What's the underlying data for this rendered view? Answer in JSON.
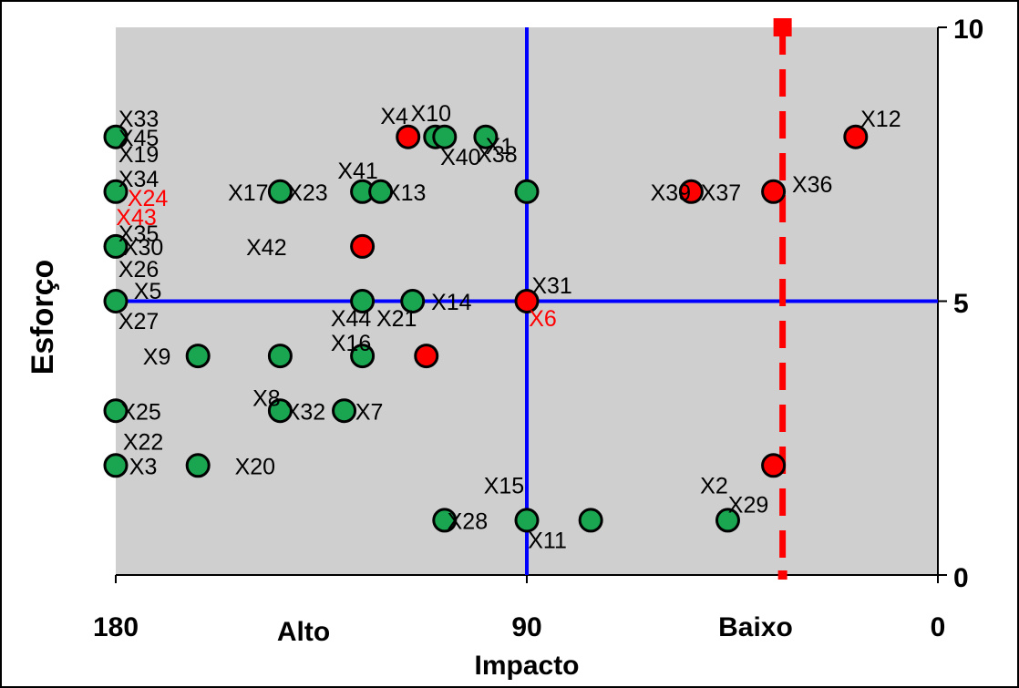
{
  "chart_data": {
    "type": "scatter",
    "title": "",
    "xlabel": "Impacto",
    "ylabel": "Esforço",
    "xlim": [
      180,
      0
    ],
    "ylim": [
      0,
      10
    ],
    "x_ticks": [
      {
        "value": 180,
        "label": "180"
      },
      {
        "value": 90,
        "label": "90"
      },
      {
        "value": 0,
        "label": "0"
      }
    ],
    "x_category_labels": [
      {
        "value": 135,
        "label": "Alto"
      },
      {
        "value": 30,
        "label": "Baixo"
      }
    ],
    "y_ticks": [
      {
        "value": 0,
        "label": "0"
      },
      {
        "value": 5,
        "label": "5"
      },
      {
        "value": 10,
        "label": "10"
      }
    ],
    "grid": false,
    "reference_lines": {
      "blue_vertical_x": 90,
      "blue_horizontal_y": 5,
      "red_dashed_vertical_x": 34
    },
    "colors": {
      "green": "#1aa550",
      "red": "#ff0000",
      "blue": "#0000ff",
      "plot_bg": "#d0cfd0"
    },
    "points": [
      {
        "x": 180,
        "y": 8,
        "color": "green"
      },
      {
        "x": 180,
        "y": 7,
        "color": "green"
      },
      {
        "x": 180,
        "y": 6,
        "color": "green"
      },
      {
        "x": 180,
        "y": 5,
        "color": "green"
      },
      {
        "x": 180,
        "y": 3,
        "color": "green"
      },
      {
        "x": 180,
        "y": 2,
        "color": "green"
      },
      {
        "x": 162,
        "y": 4,
        "color": "green"
      },
      {
        "x": 162,
        "y": 2,
        "color": "green"
      },
      {
        "x": 144,
        "y": 7,
        "color": "green"
      },
      {
        "x": 144,
        "y": 4,
        "color": "green"
      },
      {
        "x": 144,
        "y": 3,
        "color": "green"
      },
      {
        "x": 130,
        "y": 3,
        "color": "green"
      },
      {
        "x": 126,
        "y": 7,
        "color": "green"
      },
      {
        "x": 126,
        "y": 6,
        "color": "red"
      },
      {
        "x": 126,
        "y": 5,
        "color": "green"
      },
      {
        "x": 126,
        "y": 4,
        "color": "green"
      },
      {
        "x": 122,
        "y": 7,
        "color": "green"
      },
      {
        "x": 116,
        "y": 8,
        "color": "red"
      },
      {
        "x": 115,
        "y": 5,
        "color": "green"
      },
      {
        "x": 112,
        "y": 4,
        "color": "red"
      },
      {
        "x": 110,
        "y": 8,
        "color": "green"
      },
      {
        "x": 108,
        "y": 8,
        "color": "green"
      },
      {
        "x": 108,
        "y": 1,
        "color": "green"
      },
      {
        "x": 99,
        "y": 8,
        "color": "green"
      },
      {
        "x": 90,
        "y": 7,
        "color": "green"
      },
      {
        "x": 90,
        "y": 5,
        "color": "red"
      },
      {
        "x": 90,
        "y": 1,
        "color": "green"
      },
      {
        "x": 76,
        "y": 1,
        "color": "green"
      },
      {
        "x": 54,
        "y": 7,
        "color": "red"
      },
      {
        "x": 46,
        "y": 1,
        "color": "green"
      },
      {
        "x": 36,
        "y": 7,
        "color": "red"
      },
      {
        "x": 36,
        "y": 2,
        "color": "red"
      },
      {
        "x": 18,
        "y": 8,
        "color": "red"
      }
    ],
    "point_labels": [
      {
        "text": "X33",
        "x": 175,
        "y": 8.3,
        "color": "black"
      },
      {
        "text": "X45",
        "x": 175,
        "y": 7.95,
        "color": "black"
      },
      {
        "text": "X19",
        "x": 175,
        "y": 7.65,
        "color": "black"
      },
      {
        "text": "X34",
        "x": 175,
        "y": 7.2,
        "color": "black"
      },
      {
        "text": "X24",
        "x": 173,
        "y": 6.85,
        "color": "red"
      },
      {
        "text": "X43",
        "x": 175.5,
        "y": 6.5,
        "color": "red"
      },
      {
        "text": "X35",
        "x": 175,
        "y": 6.2,
        "color": "black"
      },
      {
        "text": "X30",
        "x": 174,
        "y": 5.95,
        "color": "black"
      },
      {
        "text": "X26",
        "x": 175,
        "y": 5.55,
        "color": "black"
      },
      {
        "text": "X5",
        "x": 173,
        "y": 5.15,
        "color": "black"
      },
      {
        "text": "X27",
        "x": 175,
        "y": 4.6,
        "color": "black"
      },
      {
        "text": "X9",
        "x": 171,
        "y": 3.95,
        "color": "black"
      },
      {
        "text": "X25",
        "x": 174.5,
        "y": 2.95,
        "color": "black"
      },
      {
        "text": "X22",
        "x": 174,
        "y": 2.4,
        "color": "black"
      },
      {
        "text": "X3",
        "x": 174,
        "y": 1.95,
        "color": "black"
      },
      {
        "text": "X20",
        "x": 149.5,
        "y": 1.95,
        "color": "black"
      },
      {
        "text": "X8",
        "x": 147,
        "y": 3.2,
        "color": "black"
      },
      {
        "text": "X32",
        "x": 138.5,
        "y": 2.95,
        "color": "black"
      },
      {
        "text": "X7",
        "x": 124.5,
        "y": 2.95,
        "color": "black"
      },
      {
        "text": "X17",
        "x": 151,
        "y": 6.95,
        "color": "black"
      },
      {
        "text": "X23",
        "x": 138,
        "y": 6.95,
        "color": "black"
      },
      {
        "text": "X41",
        "x": 127,
        "y": 7.35,
        "color": "black"
      },
      {
        "text": "X13",
        "x": 116.5,
        "y": 6.95,
        "color": "black"
      },
      {
        "text": "X4",
        "x": 119,
        "y": 8.35,
        "color": "black"
      },
      {
        "text": "X10",
        "x": 111,
        "y": 8.4,
        "color": "black"
      },
      {
        "text": "X40",
        "x": 104.5,
        "y": 7.6,
        "color": "black"
      },
      {
        "text": "X1",
        "x": 96,
        "y": 7.8,
        "color": "black"
      },
      {
        "text": "X38",
        "x": 96.5,
        "y": 7.65,
        "color": "black"
      },
      {
        "text": "X42",
        "x": 147,
        "y": 5.95,
        "color": "black"
      },
      {
        "text": "X44",
        "x": 128.5,
        "y": 4.65,
        "color": "black"
      },
      {
        "text": "X21",
        "x": 118.5,
        "y": 4.65,
        "color": "black"
      },
      {
        "text": "X14",
        "x": 106.5,
        "y": 4.95,
        "color": "black"
      },
      {
        "text": "X16",
        "x": 128.5,
        "y": 4.2,
        "color": "black"
      },
      {
        "text": "X31",
        "x": 84.5,
        "y": 5.25,
        "color": "black"
      },
      {
        "text": "X6",
        "x": 86.5,
        "y": 4.65,
        "color": "red"
      },
      {
        "text": "X15",
        "x": 95,
        "y": 1.6,
        "color": "black"
      },
      {
        "text": "X28",
        "x": 103,
        "y": 0.95,
        "color": "black"
      },
      {
        "text": "X11",
        "x": 85.5,
        "y": 0.6,
        "color": "black"
      },
      {
        "text": "X39",
        "x": 58.5,
        "y": 6.95,
        "color": "black"
      },
      {
        "text": "X37",
        "x": 47.5,
        "y": 6.95,
        "color": "black"
      },
      {
        "text": "X36",
        "x": 27.5,
        "y": 7.1,
        "color": "black"
      },
      {
        "text": "X12",
        "x": 12.5,
        "y": 8.3,
        "color": "black"
      },
      {
        "text": "X2",
        "x": 49,
        "y": 1.6,
        "color": "black"
      },
      {
        "text": "X29",
        "x": 41.5,
        "y": 1.25,
        "color": "black"
      }
    ]
  }
}
